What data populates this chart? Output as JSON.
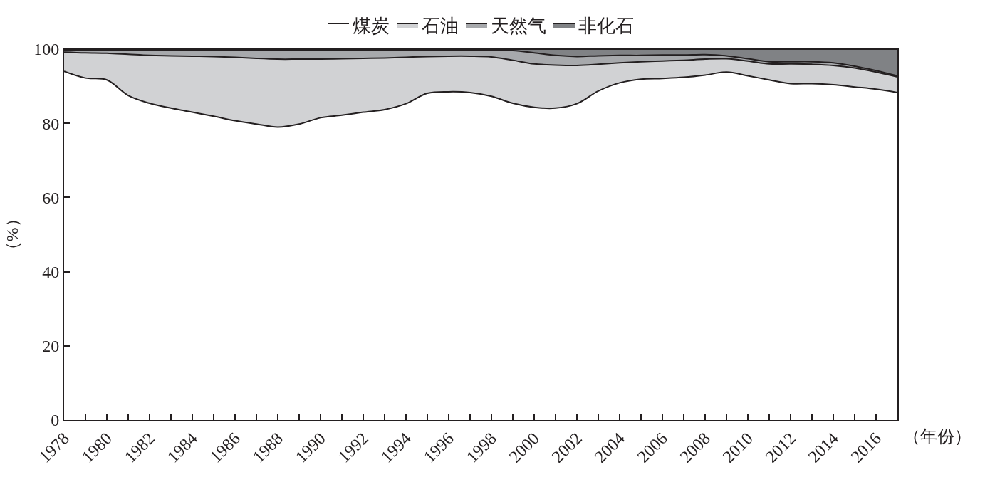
{
  "chart_data": {
    "type": "area",
    "stacked": true,
    "legend": "top",
    "xlabel": "（年份）",
    "ylabel": "（%）",
    "x": [
      1978,
      1979,
      1980,
      1981,
      1982,
      1983,
      1984,
      1985,
      1986,
      1987,
      1988,
      1989,
      1990,
      1991,
      1992,
      1993,
      1994,
      1995,
      1996,
      1997,
      1998,
      1999,
      2000,
      2001,
      2002,
      2003,
      2004,
      2005,
      2006,
      2007,
      2008,
      2009,
      2010,
      2011,
      2012,
      2013,
      2014,
      2015,
      2016,
      2017
    ],
    "series": [
      {
        "name": "煤炭",
        "color": "#ffffff",
        "values": [
          94.0,
          92.2,
          91.7,
          87.5,
          85.4,
          84.1,
          83.0,
          81.9,
          80.7,
          79.8,
          79.0,
          79.8,
          81.5,
          82.2,
          83.0,
          83.7,
          85.3,
          88.1,
          88.5,
          88.3,
          87.3,
          85.4,
          84.3,
          84.1,
          85.3,
          88.7,
          90.9,
          91.9,
          92.1,
          92.4,
          93.0,
          93.8,
          92.8,
          91.7,
          90.7,
          90.7,
          90.4,
          89.8,
          89.2,
          88.3
        ]
      },
      {
        "name": "石油",
        "color": "#d1d2d4",
        "values": [
          5.2,
          6.8,
          7.2,
          11.1,
          12.9,
          14.1,
          15.1,
          16.1,
          17.1,
          17.7,
          18.3,
          17.5,
          15.8,
          15.2,
          14.5,
          13.9,
          12.5,
          9.9,
          9.6,
          9.8,
          10.6,
          11.6,
          11.7,
          11.6,
          10.3,
          7.2,
          5.4,
          4.7,
          4.7,
          4.6,
          4.3,
          3.6,
          4.0,
          4.3,
          5.3,
          5.2,
          5.2,
          5.1,
          4.6,
          4.2
        ]
      },
      {
        "name": "天然气",
        "color": "#a7a9ac",
        "values": [
          0.4,
          0.7,
          0.8,
          1.1,
          1.4,
          1.5,
          1.6,
          1.7,
          1.9,
          2.2,
          2.4,
          2.4,
          2.4,
          2.3,
          2.2,
          2.1,
          1.9,
          1.7,
          1.6,
          1.6,
          1.8,
          2.6,
          3.0,
          2.6,
          2.4,
          2.3,
          2.0,
          1.7,
          1.6,
          1.4,
          1.2,
          0.8,
          0.6,
          0.6,
          0.6,
          0.7,
          0.7,
          0.5,
          0.4,
          0.3
        ]
      },
      {
        "name": "非化石",
        "color": "#808285",
        "values": [
          0.4,
          0.3,
          0.3,
          0.3,
          0.3,
          0.3,
          0.3,
          0.3,
          0.3,
          0.3,
          0.3,
          0.3,
          0.3,
          0.3,
          0.3,
          0.3,
          0.3,
          0.3,
          0.3,
          0.3,
          0.3,
          0.4,
          1.0,
          1.7,
          2.0,
          1.8,
          1.7,
          1.7,
          1.6,
          1.6,
          1.5,
          1.8,
          2.6,
          3.4,
          3.4,
          3.4,
          3.7,
          4.6,
          5.8,
          7.2
        ]
      }
    ],
    "xlim": [
      1978,
      2017
    ],
    "xticks": [
      1978,
      {
        "value": 1979,
        "label": null
      },
      1980,
      {
        "value": 1981,
        "label": null
      },
      1982,
      {
        "value": 1983,
        "label": null
      },
      1984,
      {
        "value": 1985,
        "label": null
      },
      1986,
      {
        "value": 1987,
        "label": null
      },
      1988,
      {
        "value": 1989,
        "label": null
      },
      1990,
      {
        "value": 1991,
        "label": null
      },
      1992,
      {
        "value": 1993,
        "label": null
      },
      1994,
      {
        "value": 1995,
        "label": null
      },
      1996,
      {
        "value": 1997,
        "label": null
      },
      1998,
      {
        "value": 1999,
        "label": null
      },
      2000,
      {
        "value": 2001,
        "label": null
      },
      2002,
      {
        "value": 2003,
        "label": null
      },
      2004,
      {
        "value": 2005,
        "label": null
      },
      2006,
      {
        "value": 2007,
        "label": null
      },
      2008,
      {
        "value": 2009,
        "label": null
      },
      2010,
      {
        "value": 2011,
        "label": null
      },
      2012,
      {
        "value": 2013,
        "label": null
      },
      2014,
      {
        "value": 2015,
        "label": null
      },
      2016,
      {
        "value": 2017,
        "label": null
      }
    ],
    "ylim": [
      0,
      100
    ],
    "yticks": [
      0,
      20,
      40,
      60,
      80,
      100
    ]
  }
}
